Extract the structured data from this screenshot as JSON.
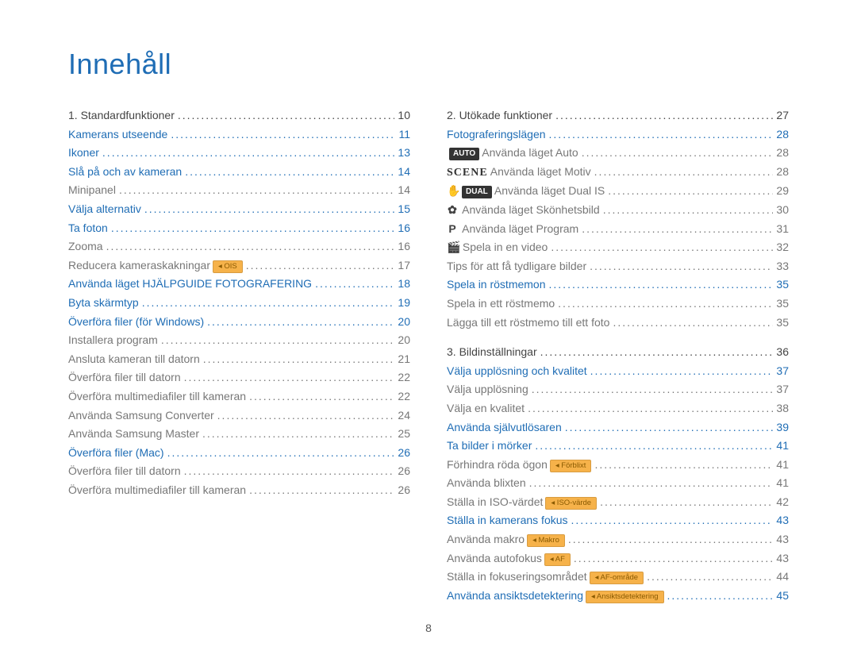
{
  "colors": {
    "title": "#1f6db5",
    "link": "#1f6db5",
    "text": "#444",
    "muted": "#777",
    "chipBg": "#f6b24a",
    "chipText": "#8a5a00"
  },
  "title": "Innehåll",
  "pageNumber": "8",
  "left": [
    {
      "t": "section",
      "label": "1. Standardfunktioner",
      "page": "10",
      "cls": "black"
    },
    {
      "t": "link",
      "label": "Kamerans utseende",
      "page": "11",
      "cls": "blue"
    },
    {
      "t": "link",
      "label": "Ikoner",
      "page": "13",
      "cls": "blue"
    },
    {
      "t": "link",
      "label": "Slå på och av kameran",
      "page": "14",
      "cls": "blue"
    },
    {
      "t": "sub",
      "label": "Minipanel",
      "page": "14",
      "cls": "gray"
    },
    {
      "t": "link",
      "label": "Välja alternativ",
      "page": "15",
      "cls": "blue"
    },
    {
      "t": "link",
      "label": "Ta foton",
      "page": "16",
      "cls": "blue"
    },
    {
      "t": "sub",
      "label": "Zooma",
      "page": "16",
      "cls": "gray"
    },
    {
      "t": "sub",
      "label": "Reducera kameraskakningar",
      "page": "17",
      "cls": "gray",
      "chip": "OIS"
    },
    {
      "t": "link",
      "label": "Använda läget HJÄLPGUIDE FOTOGRAFERING",
      "page": "18",
      "cls": "blue"
    },
    {
      "t": "link",
      "label": "Byta skärmtyp",
      "page": "19",
      "cls": "blue"
    },
    {
      "t": "link",
      "label": "Överföra filer (för Windows)",
      "page": "20",
      "cls": "blue"
    },
    {
      "t": "sub",
      "label": "Installera program",
      "page": "20",
      "cls": "gray"
    },
    {
      "t": "sub",
      "label": "Ansluta kameran till datorn",
      "page": "21",
      "cls": "gray"
    },
    {
      "t": "sub",
      "label": "Överföra filer till datorn",
      "page": "22",
      "cls": "gray"
    },
    {
      "t": "sub",
      "label": "Överföra multimediafiler till kameran",
      "page": "22",
      "cls": "gray"
    },
    {
      "t": "sub",
      "label": "Använda Samsung Converter",
      "page": "24",
      "cls": "gray"
    },
    {
      "t": "sub",
      "label": "Använda Samsung Master",
      "page": "25",
      "cls": "gray"
    },
    {
      "t": "link",
      "label": "Överföra filer (Mac)",
      "page": "26",
      "cls": "blue"
    },
    {
      "t": "sub",
      "label": "Överföra filer till datorn",
      "page": "26",
      "cls": "gray"
    },
    {
      "t": "sub",
      "label": "Överföra multimediafiler till kameran",
      "page": "26",
      "cls": "gray"
    }
  ],
  "right": [
    {
      "t": "section",
      "label": "2. Utökade funktioner",
      "page": "27",
      "cls": "black"
    },
    {
      "t": "link",
      "label": "Fotograferingslägen",
      "page": "28",
      "cls": "blue"
    },
    {
      "t": "sub",
      "prefixDark": "AUTO",
      "label": " Använda läget Auto",
      "page": "28",
      "cls": "gray"
    },
    {
      "t": "sub",
      "prefixScene": "SCENE",
      "label": " Använda läget Motiv",
      "page": "28",
      "cls": "gray"
    },
    {
      "t": "sub",
      "prefixIcon": "✋",
      "prefixDark": "DUAL",
      "label": " Använda läget Dual IS",
      "page": "29",
      "cls": "gray"
    },
    {
      "t": "sub",
      "prefixIcon": "✿",
      "label": " Använda läget Skönhetsbild",
      "page": "30",
      "cls": "gray"
    },
    {
      "t": "sub",
      "prefixIcon": "P",
      "label": " Använda läget Program",
      "page": "31",
      "cls": "gray"
    },
    {
      "t": "sub",
      "prefixIcon": "🎬",
      "label": " Spela in en video",
      "page": "32",
      "cls": "gray"
    },
    {
      "t": "sub",
      "label": "Tips för att få tydligare bilder",
      "page": "33",
      "cls": "gray"
    },
    {
      "t": "link",
      "label": "Spela in röstmemon",
      "page": "35",
      "cls": "blue"
    },
    {
      "t": "sub",
      "label": "Spela in ett röstmemo",
      "page": "35",
      "cls": "gray"
    },
    {
      "t": "sub",
      "label": "Lägga till ett röstmemo till ett foto",
      "page": "35",
      "cls": "gray"
    },
    {
      "t": "gap"
    },
    {
      "t": "section",
      "label": "3. Bildinställningar",
      "page": "36",
      "cls": "black"
    },
    {
      "t": "link",
      "label": "Välja upplösning och kvalitet",
      "page": "37",
      "cls": "blue"
    },
    {
      "t": "sub",
      "label": "Välja upplösning",
      "page": "37",
      "cls": "gray"
    },
    {
      "t": "sub",
      "label": "Välja en kvalitet",
      "page": "38",
      "cls": "gray"
    },
    {
      "t": "link",
      "label": "Använda självutlösaren",
      "page": "39",
      "cls": "blue"
    },
    {
      "t": "link",
      "label": "Ta bilder i mörker",
      "page": "41",
      "cls": "blue"
    },
    {
      "t": "sub",
      "label": "Förhindra röda ögon",
      "page": "41",
      "cls": "gray",
      "chip": "Förblixt"
    },
    {
      "t": "sub",
      "label": "Använda blixten",
      "page": "41",
      "cls": "gray"
    },
    {
      "t": "sub",
      "label": "Ställa in ISO-värdet",
      "page": "42",
      "cls": "gray",
      "chip": "ISO-värde"
    },
    {
      "t": "link",
      "label": "Ställa in kamerans fokus",
      "page": "43",
      "cls": "blue"
    },
    {
      "t": "sub",
      "label": "Använda makro",
      "page": "43",
      "cls": "gray",
      "chip": "Makro"
    },
    {
      "t": "sub",
      "label": "Använda autofokus",
      "page": "43",
      "cls": "gray",
      "chip": "AF"
    },
    {
      "t": "sub",
      "label": "Ställa in fokuseringsområdet",
      "page": "44",
      "cls": "gray",
      "chip": "AF-område"
    },
    {
      "t": "link",
      "label": "Använda ansiktsdetektering",
      "page": "45",
      "cls": "blue",
      "chip": "Ansiktsdetektering"
    }
  ]
}
